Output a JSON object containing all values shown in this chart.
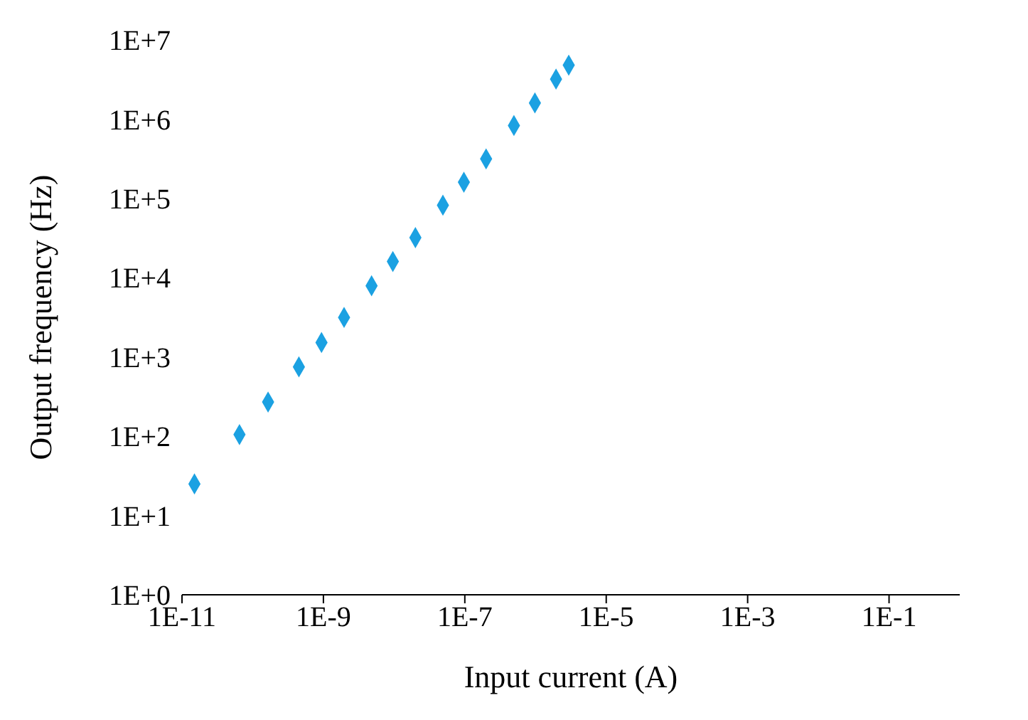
{
  "chart_data": {
    "type": "scatter",
    "xlabel": "Input current (A)",
    "ylabel": "Output frequency (Hz)",
    "x": [
      1.5e-11,
      6.5e-11,
      1.65e-10,
      4.5e-10,
      9.4e-10,
      1.96e-09,
      4.8e-09,
      9.6e-09,
      2e-08,
      4.9e-08,
      9.7e-08,
      2e-07,
      4.95e-07,
      9.8e-07,
      1.95e-06,
      2.95e-06
    ],
    "series": [
      {
        "color": "#1ba1e2",
        "values": [
          25,
          105,
          270,
          750,
          1520,
          3150,
          7900,
          16000,
          32000,
          82000,
          160000,
          315000,
          830000,
          1600000,
          3200000,
          4800000
        ]
      }
    ],
    "log": "xy",
    "xlim": [
      1e-11,
      1
    ],
    "ylim": [
      1,
      10000000
    ],
    "xticks": [
      {
        "value": 1e-11,
        "label": "1E-11"
      },
      {
        "value": 1e-09,
        "label": "1E-9"
      },
      {
        "value": 1e-07,
        "label": "1E-7"
      },
      {
        "value": 1e-05,
        "label": "1E-5"
      },
      {
        "value": 0.001,
        "label": "1E-3"
      },
      {
        "value": 0.1,
        "label": "1E-1"
      }
    ],
    "yticks": [
      {
        "value": 1,
        "label": "1E+0"
      },
      {
        "value": 10,
        "label": "1E+1"
      },
      {
        "value": 100,
        "label": "1E+2"
      },
      {
        "value": 1000,
        "label": "1E+3"
      },
      {
        "value": 10000,
        "label": "1E+4"
      },
      {
        "value": 100000,
        "label": "1E+5"
      },
      {
        "value": 1000000,
        "label": "1E+6"
      },
      {
        "value": 10000000,
        "label": "1E+7"
      }
    ],
    "grid": false,
    "legend": false,
    "marker": "diamond"
  }
}
